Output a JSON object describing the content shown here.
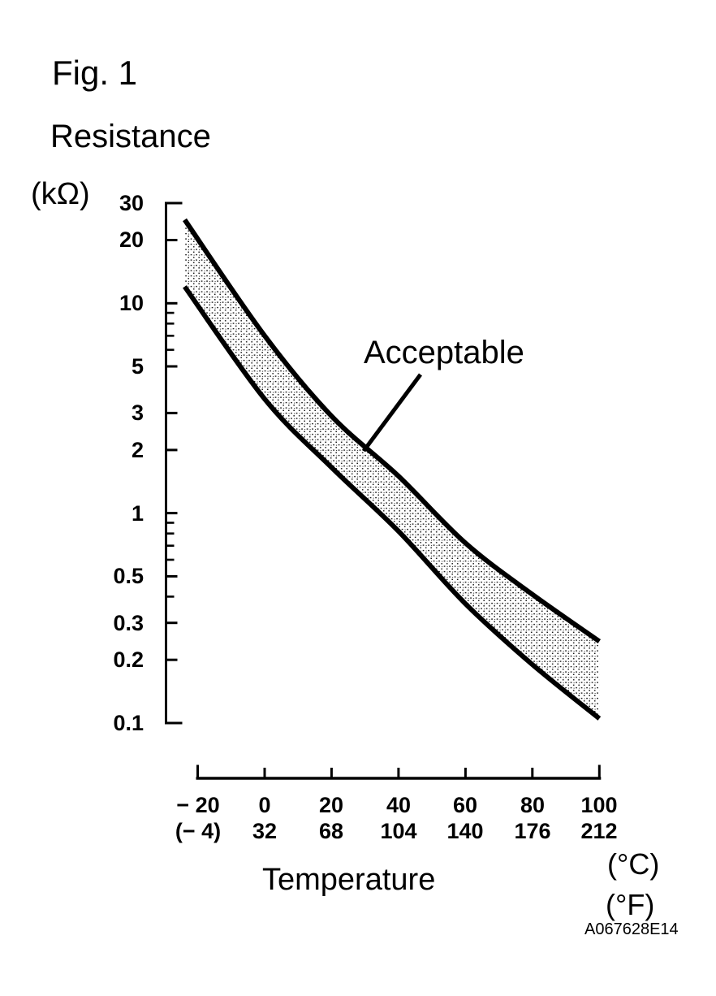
{
  "figure": {
    "fig_label": "Fig. 1",
    "y_axis_title": "Resistance",
    "y_axis_unit": "(kΩ)",
    "x_axis_title": "Temperature",
    "x_unit_primary": "(°C)",
    "x_unit_secondary": "(°F)",
    "annotation": "Acceptable",
    "doc_code": "A067628E14"
  },
  "chart_data": {
    "type": "area",
    "title": "Fig. 1",
    "xlabel": "Temperature",
    "ylabel": "Resistance (kΩ)",
    "x_units": [
      "°C",
      "°F"
    ],
    "y_scale": "log",
    "xlim": [
      -20,
      100
    ],
    "ylim": [
      0.1,
      30
    ],
    "grid": false,
    "x": [
      -20,
      0,
      20,
      40,
      60,
      80,
      100
    ],
    "x_ticklabels_celsius": [
      "− 20",
      "0",
      "20",
      "40",
      "60",
      "80",
      "100"
    ],
    "x_ticklabels_fahrenheit": [
      "(− 4)",
      "32",
      "68",
      "104",
      "140",
      "176",
      "212"
    ],
    "y_major_ticks": [
      30,
      20,
      10,
      5,
      3,
      2,
      1,
      0.5,
      0.3,
      0.2,
      0.1
    ],
    "y_major_ticklabels": [
      "30",
      "20",
      "10",
      "5",
      "3",
      "2",
      "1",
      "0.5",
      "0.3",
      "0.2",
      "0.1"
    ],
    "y_minor_ticks": [
      9,
      8,
      7,
      6,
      0.9,
      0.8,
      0.7,
      0.6,
      0.4
    ],
    "series": [
      {
        "name": "upper_limit_kohm",
        "values": [
          25,
          7.0,
          2.9,
          1.5,
          0.72,
          0.41,
          0.245
        ]
      },
      {
        "name": "lower_limit_kohm",
        "values": [
          12,
          3.5,
          1.65,
          0.82,
          0.37,
          0.19,
          0.105
        ]
      }
    ],
    "band_label": "Acceptable",
    "legend": "none",
    "colors": {
      "ink": "#000000",
      "stipple": "#1c1c1c",
      "background": "#ffffff"
    }
  }
}
